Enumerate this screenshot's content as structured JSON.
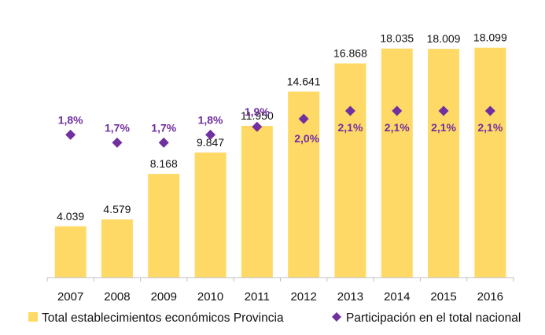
{
  "chart_data": {
    "type": "bar",
    "categories": [
      "2007",
      "2008",
      "2009",
      "2010",
      "2011",
      "2012",
      "2013",
      "2014",
      "2015",
      "2016"
    ],
    "series": [
      {
        "name": "Total establecimientos económicos Provincia",
        "kind": "bar",
        "values": [
          4039,
          4579,
          8168,
          9847,
          11950,
          14641,
          16868,
          18035,
          18009,
          18099
        ],
        "labels": [
          "4.039",
          "4.579",
          "8.168",
          "9.847",
          "11.950",
          "14.641",
          "16.868",
          "18.035",
          "18.009",
          "18.099"
        ],
        "color": "#FFD966"
      },
      {
        "name": "Participación en el total nacional",
        "kind": "marker",
        "values": [
          1.8,
          1.7,
          1.7,
          1.8,
          1.9,
          2.0,
          2.1,
          2.1,
          2.1,
          2.1
        ],
        "labels": [
          "1,8%",
          "1,7%",
          "1,7%",
          "1,8%",
          "1,9%",
          "2,0%",
          "2,1%",
          "2,1%",
          "2,1%",
          "2,1%"
        ],
        "color": "#7030A0"
      }
    ],
    "ylim": [
      0,
      20000
    ],
    "y2lim": [
      0.0,
      3.2
    ],
    "grid": false,
    "legend": "bottom"
  }
}
